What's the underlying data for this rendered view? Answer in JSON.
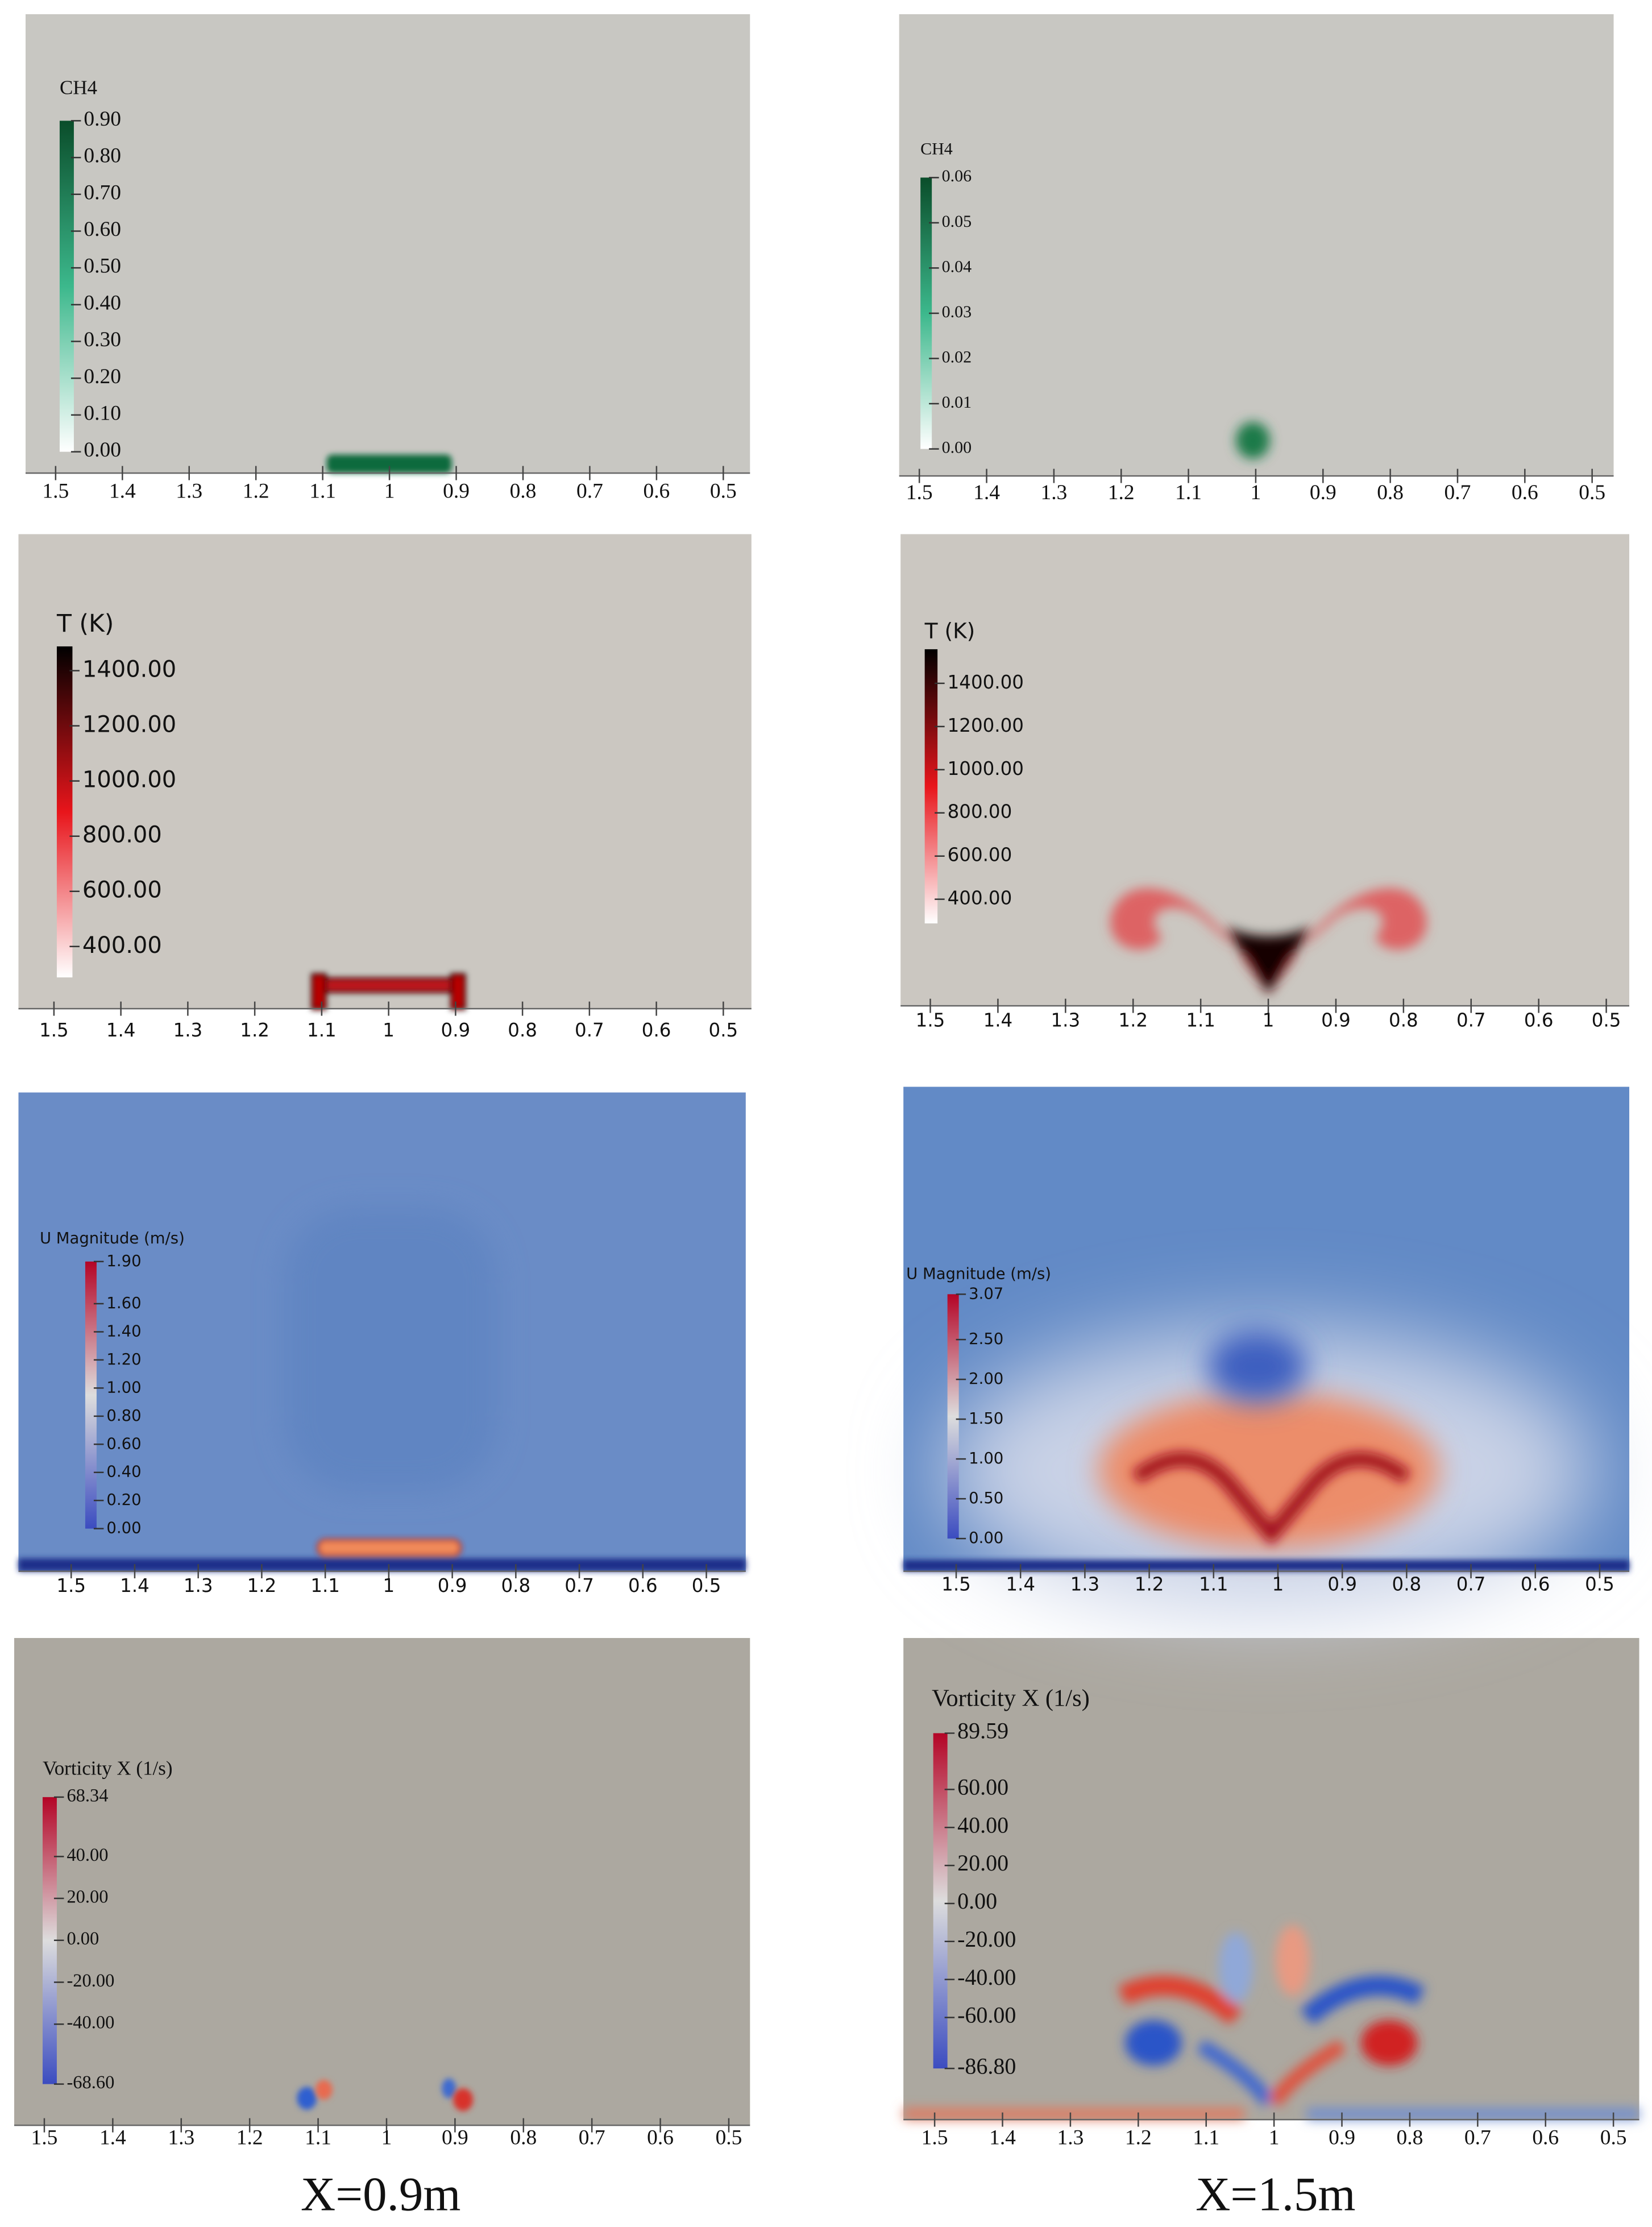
{
  "chart_data": [
    {
      "type": "contour",
      "colorbar_title": "CH4",
      "background": "#c8c7c2",
      "colors": [
        "#ffffff",
        "#3cb88c",
        "#0a4d2a"
      ],
      "clim": [
        0,
        0.9
      ],
      "cticks": [
        {
          "value": 0,
          "label": "0.00"
        },
        {
          "value": 0.1,
          "label": "0.10"
        },
        {
          "value": 0.2,
          "label": "0.20"
        },
        {
          "value": 0.3,
          "label": "0.30"
        },
        {
          "value": 0.4,
          "label": "0.40"
        },
        {
          "value": 0.5,
          "label": "0.50"
        },
        {
          "value": 0.6,
          "label": "0.60"
        },
        {
          "value": 0.7,
          "label": "0.70"
        },
        {
          "value": 0.8,
          "label": "0.80"
        },
        {
          "value": 0.9,
          "label": "0.90"
        }
      ],
      "xlim": [
        1.545,
        0.46
      ],
      "xticks": [
        1.5,
        1.4,
        1.3,
        1.2,
        1.1,
        1,
        0.9,
        0.8,
        0.7,
        0.6,
        0.5
      ]
    },
    {
      "type": "contour",
      "colorbar_title": "CH4",
      "background": "#c8c7c2",
      "colors": [
        "#ffffff",
        "#3cb88c",
        "#0a4d2a"
      ],
      "clim": [
        0,
        0.06
      ],
      "cticks": [
        {
          "value": 0,
          "label": "0.00"
        },
        0.01,
        0.02,
        0.03,
        0.04,
        0.05,
        0.06
      ],
      "xlim": [
        1.53,
        0.468
      ],
      "xticks": [
        1.5,
        1.4,
        1.3,
        1.2,
        1.1,
        1,
        0.9,
        0.8,
        0.7,
        0.6,
        0.5
      ]
    },
    {
      "type": "contour",
      "colorbar_title": "T (K)",
      "background": "#cbc7c1",
      "colors": [
        "#ffffff",
        "#e8151b",
        "#000000"
      ],
      "clim": [
        288,
        1488
      ],
      "cticks": [
        {
          "value": 400,
          "label": "400.00"
        },
        {
          "value": 600,
          "label": "600.00"
        },
        {
          "value": 800,
          "label": "800.00"
        },
        {
          "value": 1000,
          "label": "1000.00"
        },
        {
          "value": 1200,
          "label": "1200.00"
        },
        {
          "value": 1400,
          "label": "1400.00"
        }
      ],
      "xlim": [
        1.553,
        0.458
      ],
      "xticks": [
        1.5,
        1.4,
        1.3,
        1.2,
        1.1,
        1,
        0.9,
        0.8,
        0.7,
        0.6,
        0.5
      ]
    },
    {
      "type": "contour",
      "colorbar_title": "T (K)",
      "background": "#cbc7c1",
      "colors": [
        "#ffffff",
        "#e8151b",
        "#000000"
      ],
      "clim": [
        288,
        1558
      ],
      "cticks": [
        {
          "value": 400,
          "label": "400.00"
        },
        {
          "value": 600,
          "label": "600.00"
        },
        {
          "value": 800,
          "label": "800.00"
        },
        {
          "value": 1000,
          "label": "1000.00"
        },
        {
          "value": 1200,
          "label": "1200.00"
        },
        {
          "value": 1400,
          "label": "1400.00"
        }
      ],
      "xlim": [
        1.544,
        0.466
      ],
      "xticks": [
        1.5,
        1.4,
        1.3,
        1.2,
        1.1,
        1,
        0.9,
        0.8,
        0.7,
        0.6,
        0.5
      ]
    },
    {
      "type": "contour",
      "colorbar_title": "U Magnitude (m/s)",
      "background": "#6a8cc6",
      "colors": [
        "#3b4cc0",
        "#dddddd",
        "#b40426"
      ],
      "clim": [
        0,
        1.9
      ],
      "cticks": [
        {
          "value": 0,
          "label": "0.00"
        },
        {
          "value": 0.2,
          "label": "0.20"
        },
        {
          "value": 0.4,
          "label": "0.40"
        },
        {
          "value": 0.6,
          "label": "0.60"
        },
        {
          "value": 0.8,
          "label": "0.80"
        },
        {
          "value": 1,
          "label": "1.00"
        },
        {
          "value": 1.2,
          "label": "1.20"
        },
        {
          "value": 1.4,
          "label": "1.40"
        },
        {
          "value": 1.6,
          "label": "1.60"
        },
        {
          "value": 1.9,
          "label": "1.90"
        }
      ],
      "xlim": [
        1.583,
        0.438
      ],
      "xticks": [
        1.5,
        1.4,
        1.3,
        1.2,
        1.1,
        1,
        0.9,
        0.8,
        0.7,
        0.6,
        0.5
      ]
    },
    {
      "type": "contour",
      "colorbar_title": "U Magnitude (m/s)",
      "background": "#628ac6",
      "colors": [
        "#3b4cc0",
        "#dddddd",
        "#b40426"
      ],
      "clim": [
        0,
        3.07
      ],
      "cticks": [
        {
          "value": 0,
          "label": "0.00"
        },
        {
          "value": 0.5,
          "label": "0.50"
        },
        {
          "value": 1,
          "label": "1.00"
        },
        {
          "value": 1.5,
          "label": "1.50"
        },
        {
          "value": 2,
          "label": "2.00"
        },
        {
          "value": 2.5,
          "label": "2.50"
        },
        3.07
      ],
      "xlim": [
        1.582,
        0.454
      ],
      "xticks": [
        1.5,
        1.4,
        1.3,
        1.2,
        1.1,
        1,
        0.9,
        0.8,
        0.7,
        0.6,
        0.5
      ]
    },
    {
      "type": "contour",
      "colorbar_title": "Vorticity X (1/s)",
      "background": "#aca8a0",
      "colors": [
        "#3b4cc0",
        "#dddddd",
        "#b40426"
      ],
      "clim": [
        -68.6,
        68.34
      ],
      "cticks": [
        {
          "value": -68.6,
          "label": "-68.60"
        },
        {
          "value": -40,
          "label": "-40.00"
        },
        {
          "value": -20,
          "label": "-20.00"
        },
        {
          "value": 0,
          "label": "0.00"
        },
        {
          "value": 20,
          "label": "20.00"
        },
        {
          "value": 40,
          "label": "40.00"
        },
        68.34
      ],
      "xlim": [
        1.544,
        0.469
      ],
      "xticks": [
        1.5,
        1.4,
        1.3,
        1.2,
        1.1,
        1,
        0.9,
        0.8,
        0.7,
        0.6,
        0.5
      ]
    },
    {
      "type": "contour",
      "colorbar_title": "Vorticity X (1/s)",
      "background": "#aca8a0",
      "colors": [
        "#3b4cc0",
        "#dddddd",
        "#b40426"
      ],
      "clim": [
        -86.8,
        89.59
      ],
      "cticks": [
        {
          "value": -86.8,
          "label": "-86.80"
        },
        {
          "value": -60,
          "label": "-60.00"
        },
        {
          "value": -40,
          "label": "-40.00"
        },
        {
          "value": -20,
          "label": "-20.00"
        },
        {
          "value": 0,
          "label": "0.00"
        },
        {
          "value": 20,
          "label": "20.00"
        },
        {
          "value": 40,
          "label": "40.00"
        },
        {
          "value": 60,
          "label": "60.00"
        },
        89.59
      ],
      "xlim": [
        1.546,
        0.462
      ],
      "xticks": [
        1.5,
        1.4,
        1.3,
        1.2,
        1.1,
        1,
        0.9,
        0.8,
        0.7,
        0.6,
        0.5
      ]
    }
  ],
  "captions": [
    "X=0.9m",
    "X=1.5m"
  ]
}
